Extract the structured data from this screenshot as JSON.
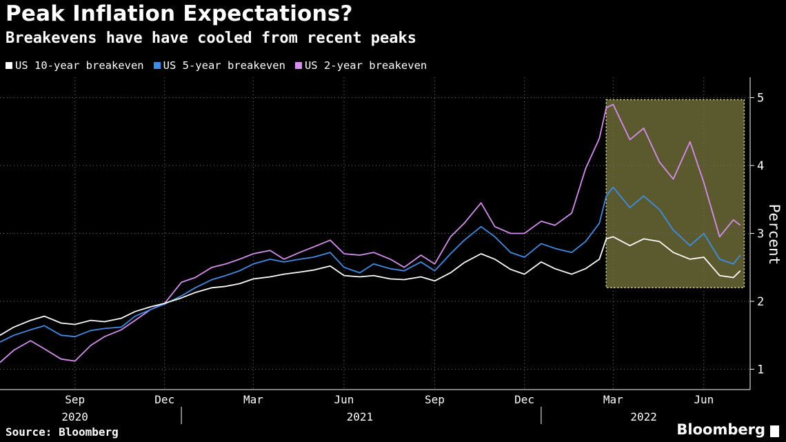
{
  "colors": {
    "background": "#000000",
    "s10": "#ffffff",
    "s5": "#3d8ee8",
    "s2": "#d78ef0",
    "highlight": "#5b5a2e",
    "highlight_border": "#e6e6a0"
  },
  "source": "Source: Bloomberg",
  "brand": "Bloomberg",
  "chart_data": {
    "type": "line",
    "title": "Peak Inflation Expectations?",
    "subtitle": "Breakevens have have cooled from recent peaks",
    "ylabel": "Percent",
    "ylim": [
      0.7,
      5.3
    ],
    "yticks": [
      1,
      2,
      3,
      4,
      5
    ],
    "xlim": [
      "2020-07-01",
      "2022-08-01"
    ],
    "month_ticks": [
      {
        "label": "Sep",
        "date": "2020-09-15"
      },
      {
        "label": "Dec",
        "date": "2020-12-15"
      },
      {
        "label": "Mar",
        "date": "2021-03-15"
      },
      {
        "label": "Jun",
        "date": "2021-06-15"
      },
      {
        "label": "Sep",
        "date": "2021-09-15"
      },
      {
        "label": "Dec",
        "date": "2021-12-15"
      },
      {
        "label": "Mar",
        "date": "2022-03-15"
      },
      {
        "label": "Jun",
        "date": "2022-06-15"
      }
    ],
    "year_labels": [
      {
        "label": "2020",
        "date": "2020-09-15"
      },
      {
        "label": "2021",
        "date": "2021-07-01"
      },
      {
        "label": "2022",
        "date": "2022-04-15"
      }
    ],
    "legend_position": "top-left",
    "grid": "dotted",
    "highlight": {
      "x": [
        "2022-03-08",
        "2022-07-26"
      ],
      "y": [
        2.2,
        4.97
      ]
    },
    "series": [
      {
        "name": "US 10-year breakeven",
        "x": [
          "2020-07-01",
          "2020-07-15",
          "2020-08-01",
          "2020-08-15",
          "2020-09-01",
          "2020-09-15",
          "2020-10-01",
          "2020-10-15",
          "2020-11-01",
          "2020-11-15",
          "2020-12-01",
          "2020-12-15",
          "2021-01-01",
          "2021-01-15",
          "2021-02-01",
          "2021-02-15",
          "2021-03-01",
          "2021-03-15",
          "2021-04-01",
          "2021-04-15",
          "2021-05-01",
          "2021-05-15",
          "2021-06-01",
          "2021-06-15",
          "2021-07-01",
          "2021-07-15",
          "2021-08-01",
          "2021-08-15",
          "2021-09-01",
          "2021-09-15",
          "2021-10-01",
          "2021-10-15",
          "2021-11-01",
          "2021-11-15",
          "2021-12-01",
          "2021-12-15",
          "2022-01-01",
          "2022-01-15",
          "2022-02-01",
          "2022-02-15",
          "2022-03-01",
          "2022-03-08",
          "2022-03-15",
          "2022-04-01",
          "2022-04-15",
          "2022-05-01",
          "2022-05-15",
          "2022-06-01",
          "2022-06-15",
          "2022-07-01",
          "2022-07-15",
          "2022-07-22"
        ],
        "values": [
          1.5,
          1.62,
          1.72,
          1.78,
          1.68,
          1.66,
          1.72,
          1.7,
          1.75,
          1.85,
          1.92,
          1.97,
          2.05,
          2.13,
          2.2,
          2.22,
          2.26,
          2.33,
          2.36,
          2.4,
          2.43,
          2.46,
          2.52,
          2.38,
          2.36,
          2.38,
          2.33,
          2.32,
          2.36,
          2.3,
          2.42,
          2.57,
          2.7,
          2.62,
          2.47,
          2.4,
          2.58,
          2.48,
          2.4,
          2.48,
          2.62,
          2.92,
          2.95,
          2.82,
          2.92,
          2.88,
          2.72,
          2.62,
          2.65,
          2.38,
          2.35,
          2.45
        ]
      },
      {
        "name": "US 5-year breakeven",
        "x": [
          "2020-07-01",
          "2020-07-15",
          "2020-08-01",
          "2020-08-15",
          "2020-09-01",
          "2020-09-15",
          "2020-10-01",
          "2020-10-15",
          "2020-11-01",
          "2020-11-15",
          "2020-12-01",
          "2020-12-15",
          "2021-01-01",
          "2021-01-15",
          "2021-02-01",
          "2021-02-15",
          "2021-03-01",
          "2021-03-15",
          "2021-04-01",
          "2021-04-15",
          "2021-05-01",
          "2021-05-15",
          "2021-06-01",
          "2021-06-15",
          "2021-07-01",
          "2021-07-15",
          "2021-08-01",
          "2021-08-15",
          "2021-09-01",
          "2021-09-15",
          "2021-10-01",
          "2021-10-15",
          "2021-11-01",
          "2021-11-15",
          "2021-12-01",
          "2021-12-15",
          "2022-01-01",
          "2022-01-15",
          "2022-02-01",
          "2022-02-15",
          "2022-03-01",
          "2022-03-08",
          "2022-03-15",
          "2022-04-01",
          "2022-04-15",
          "2022-05-01",
          "2022-05-15",
          "2022-06-01",
          "2022-06-15",
          "2022-07-01",
          "2022-07-15",
          "2022-07-22"
        ],
        "values": [
          1.4,
          1.5,
          1.58,
          1.64,
          1.5,
          1.48,
          1.57,
          1.6,
          1.62,
          1.78,
          1.88,
          1.96,
          2.08,
          2.2,
          2.32,
          2.38,
          2.45,
          2.55,
          2.62,
          2.58,
          2.62,
          2.65,
          2.72,
          2.5,
          2.42,
          2.55,
          2.48,
          2.45,
          2.58,
          2.45,
          2.7,
          2.9,
          3.1,
          2.95,
          2.72,
          2.65,
          2.85,
          2.78,
          2.72,
          2.88,
          3.15,
          3.55,
          3.68,
          3.38,
          3.55,
          3.35,
          3.05,
          2.82,
          3.0,
          2.62,
          2.55,
          2.68
        ]
      },
      {
        "name": "US 2-year breakeven",
        "x": [
          "2020-07-01",
          "2020-07-15",
          "2020-08-01",
          "2020-08-15",
          "2020-09-01",
          "2020-09-15",
          "2020-10-01",
          "2020-10-15",
          "2020-11-01",
          "2020-11-15",
          "2020-12-01",
          "2020-12-15",
          "2021-01-01",
          "2021-01-15",
          "2021-02-01",
          "2021-02-15",
          "2021-03-01",
          "2021-03-15",
          "2021-04-01",
          "2021-04-15",
          "2021-05-01",
          "2021-05-15",
          "2021-06-01",
          "2021-06-15",
          "2021-07-01",
          "2021-07-15",
          "2021-08-01",
          "2021-08-15",
          "2021-09-01",
          "2021-09-15",
          "2021-10-01",
          "2021-10-15",
          "2021-11-01",
          "2021-11-15",
          "2021-12-01",
          "2021-12-15",
          "2022-01-01",
          "2022-01-15",
          "2022-02-01",
          "2022-02-15",
          "2022-03-01",
          "2022-03-08",
          "2022-03-15",
          "2022-04-01",
          "2022-04-15",
          "2022-05-01",
          "2022-05-15",
          "2022-06-01",
          "2022-06-15",
          "2022-07-01",
          "2022-07-15",
          "2022-07-22"
        ],
        "values": [
          1.1,
          1.28,
          1.42,
          1.3,
          1.15,
          1.12,
          1.35,
          1.48,
          1.58,
          1.72,
          1.88,
          1.97,
          2.28,
          2.35,
          2.5,
          2.55,
          2.62,
          2.7,
          2.75,
          2.62,
          2.72,
          2.8,
          2.9,
          2.7,
          2.68,
          2.72,
          2.62,
          2.5,
          2.68,
          2.55,
          2.95,
          3.15,
          3.45,
          3.1,
          3.0,
          3.0,
          3.18,
          3.12,
          3.3,
          3.95,
          4.4,
          4.85,
          4.9,
          4.38,
          4.55,
          4.05,
          3.8,
          4.35,
          3.75,
          2.95,
          3.2,
          3.12
        ]
      }
    ]
  }
}
